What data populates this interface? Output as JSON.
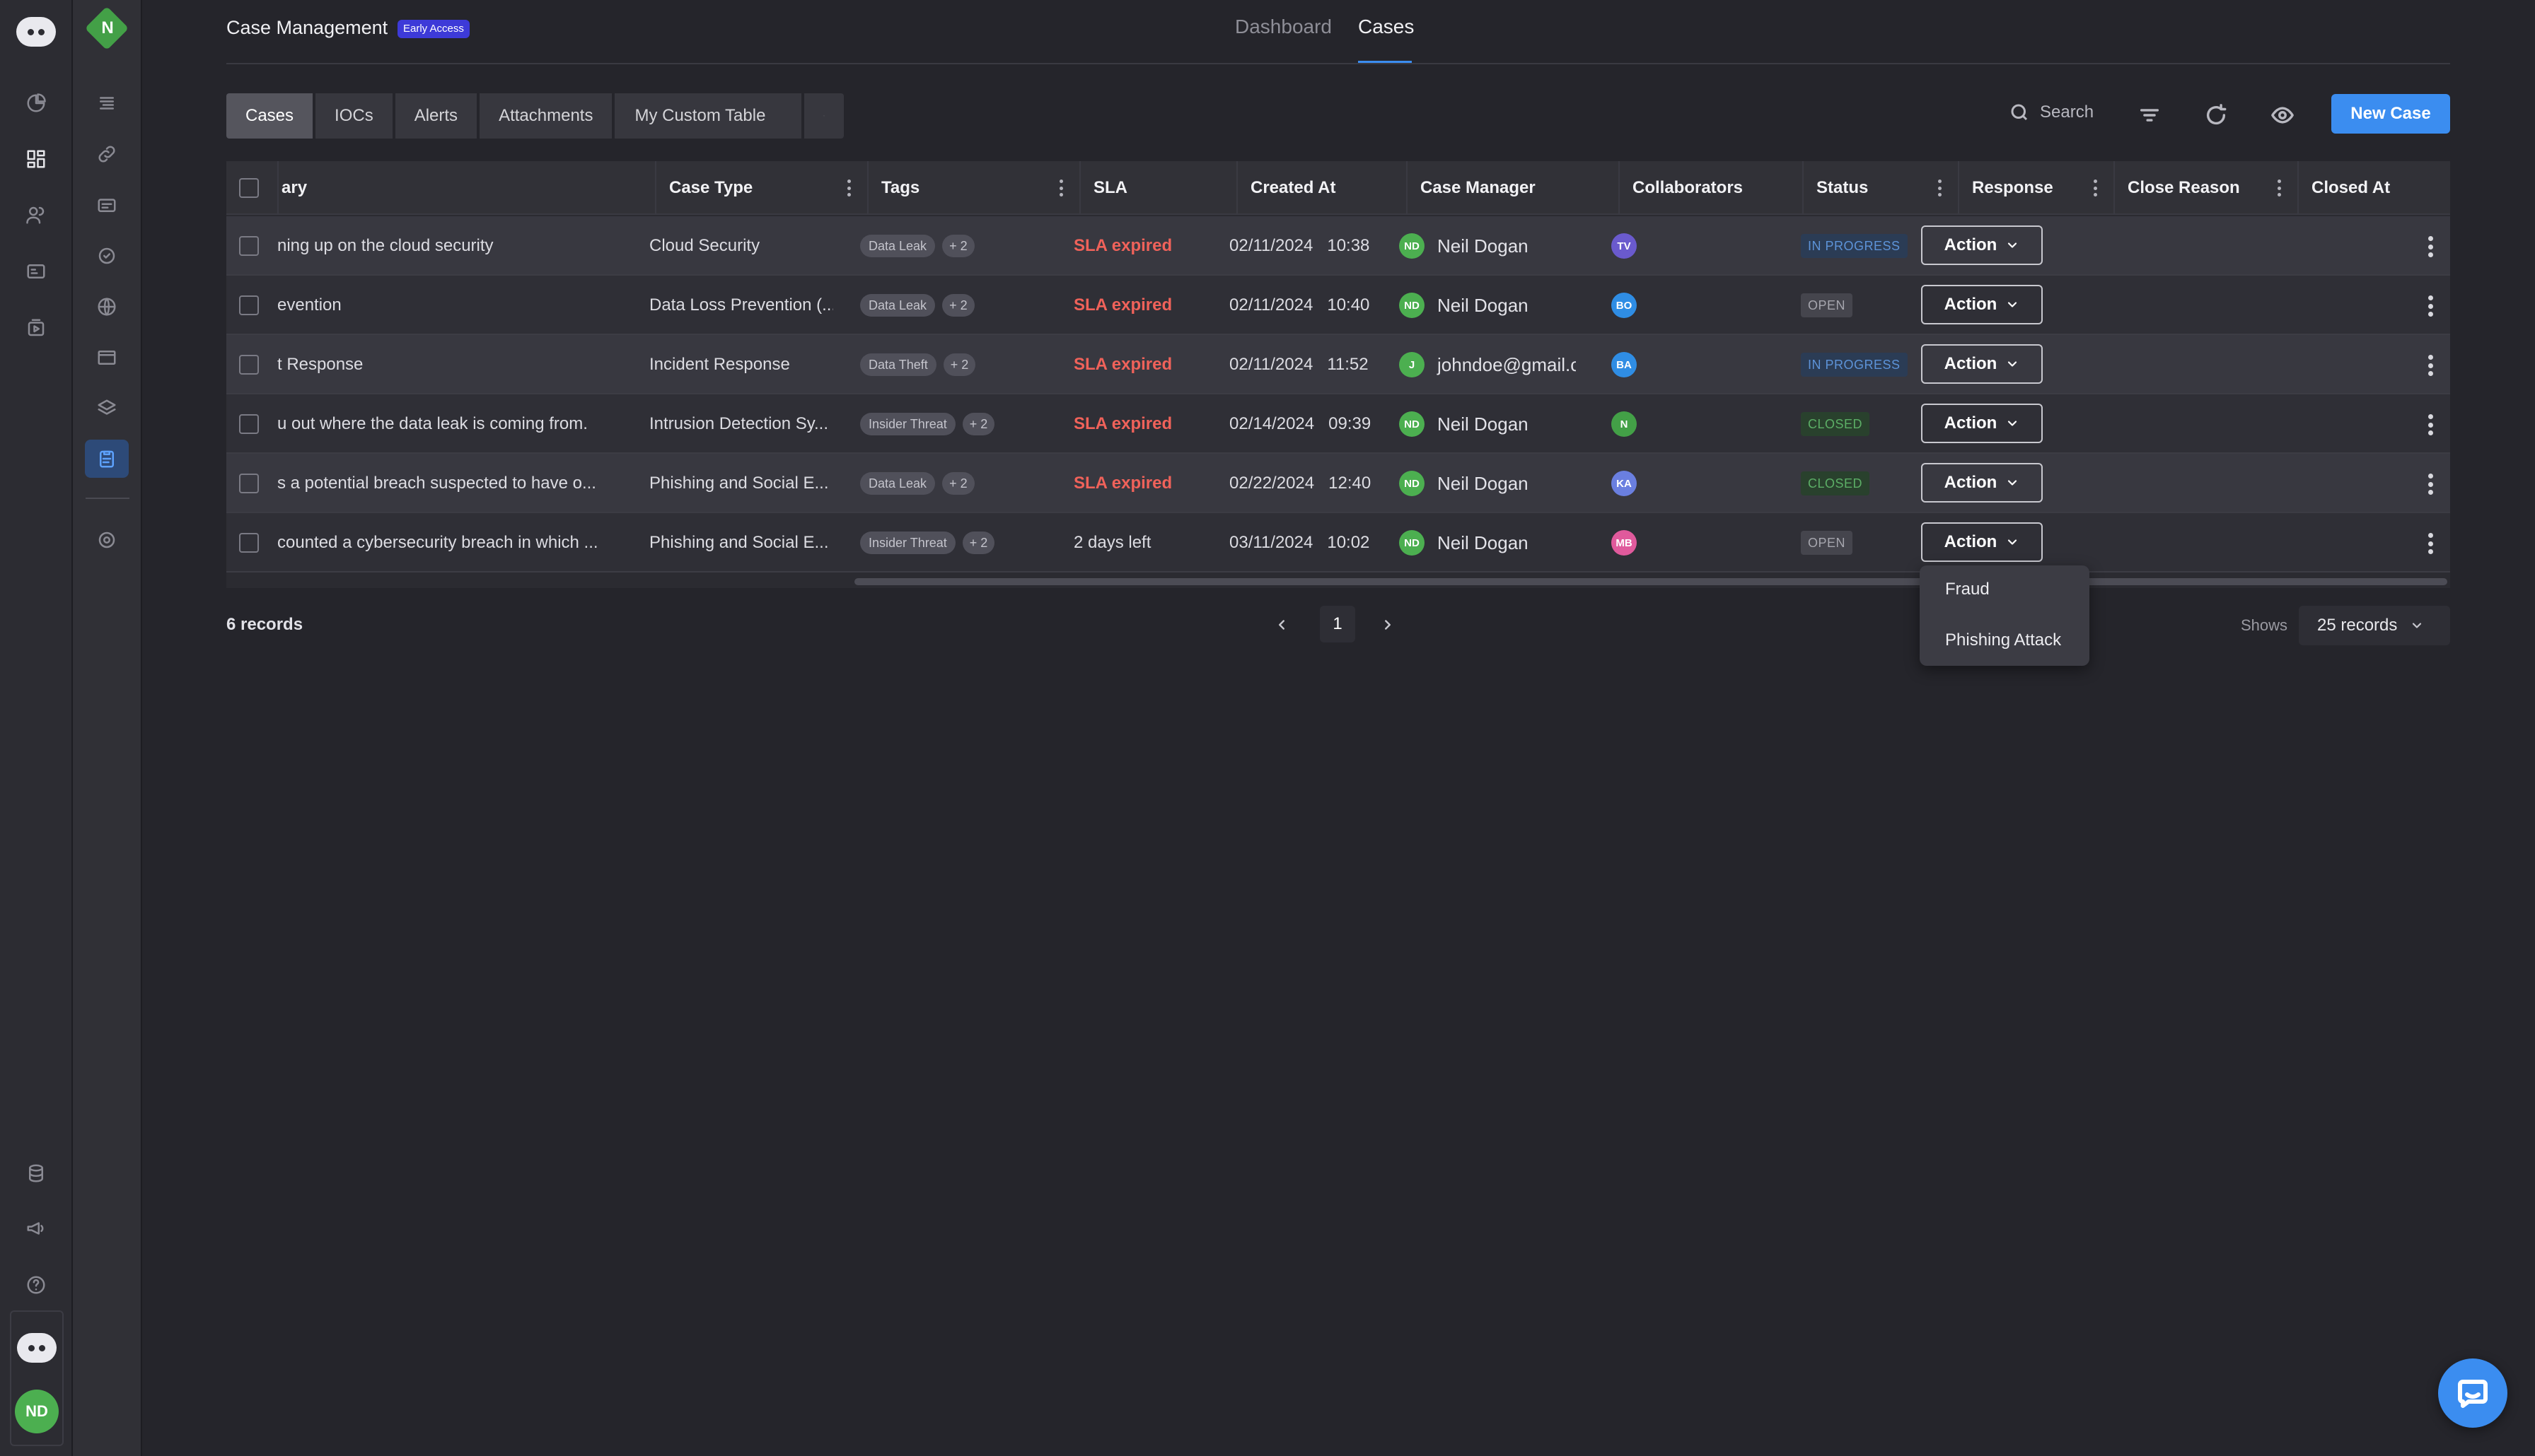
{
  "app": {
    "title": "Case Management",
    "badge": "Early Access",
    "workspace_letter": "N"
  },
  "top_tabs": [
    {
      "label": "Dashboard",
      "active": false
    },
    {
      "label": "Cases",
      "active": true
    }
  ],
  "table_tabs": [
    {
      "label": "Cases",
      "active": true
    },
    {
      "label": "IOCs",
      "active": false
    },
    {
      "label": "Alerts",
      "active": false
    },
    {
      "label": "Attachments",
      "active": false
    },
    {
      "label": "My Custom Table",
      "active": false
    }
  ],
  "toolbar": {
    "search_label": "Search",
    "new_case_label": "New Case"
  },
  "columns": {
    "summary": "ary",
    "case_type": "Case Type",
    "tags": "Tags",
    "sla": "SLA",
    "created_at": "Created At",
    "case_manager": "Case Manager",
    "collaborators": "Collaborators",
    "status": "Status",
    "response": "Response",
    "close_reason": "Close Reason",
    "closed_at": "Closed At"
  },
  "rows": [
    {
      "summary": "ning up on the cloud security",
      "case_type": "Cloud Security",
      "tag": "Data Leak",
      "tag_more": "+ 2",
      "sla": "SLA expired",
      "sla_expired": true,
      "date": "02/11/2024",
      "time": "10:38",
      "manager_initials": "ND",
      "manager": "Neil Dogan",
      "collab_initials": "TV",
      "collab_color": "#6a5acd",
      "status": "IN PROGRESS",
      "status_kind": "progress",
      "action": "Action"
    },
    {
      "summary": "evention",
      "case_type": "Data Loss Prevention (...",
      "tag": "Data Leak",
      "tag_more": "+ 2",
      "sla": "SLA expired",
      "sla_expired": true,
      "date": "02/11/2024",
      "time": "10:40",
      "manager_initials": "ND",
      "manager": "Neil Dogan",
      "collab_initials": "BO",
      "collab_color": "#2f8de4",
      "status": "OPEN",
      "status_kind": "open",
      "action": "Action"
    },
    {
      "summary": "t Response",
      "case_type": "Incident Response",
      "tag": "Data Theft",
      "tag_more": "+ 2",
      "sla": "SLA expired",
      "sla_expired": true,
      "date": "02/11/2024",
      "time": "11:52",
      "manager_initials": "J",
      "manager": "johndoe@gmail.com",
      "collab_initials": "BA",
      "collab_color": "#2f8de4",
      "status": "IN PROGRESS",
      "status_kind": "progress",
      "action": "Action"
    },
    {
      "summary": "u out where the data leak is coming from.",
      "case_type": "Intrusion Detection Sy...",
      "tag": "Insider Threat",
      "tag_more": "+ 2",
      "sla": "SLA expired",
      "sla_expired": true,
      "date": "02/14/2024",
      "time": "09:39",
      "manager_initials": "ND",
      "manager": "Neil Dogan",
      "collab_initials": "N",
      "collab_color": "#43a047",
      "status": "CLOSED",
      "status_kind": "closed",
      "action": "Action"
    },
    {
      "summary": "s a potential breach suspected to have o...",
      "case_type": "Phishing and Social E...",
      "tag": "Data Leak",
      "tag_more": "+ 2",
      "sla": "SLA expired",
      "sla_expired": true,
      "date": "02/22/2024",
      "time": "12:40",
      "manager_initials": "ND",
      "manager": "Neil Dogan",
      "collab_initials": "KA",
      "collab_color": "#6a7fe0",
      "status": "CLOSED",
      "status_kind": "closed",
      "action": "Action"
    },
    {
      "summary": "counted a cybersecurity breach in which ...",
      "case_type": "Phishing and Social E...",
      "tag": "Insider Threat",
      "tag_more": "+ 2",
      "sla": "2 days left",
      "sla_expired": false,
      "date": "03/11/2024",
      "time": "10:02",
      "manager_initials": "ND",
      "manager": "Neil Dogan",
      "collab_initials": "MB",
      "collab_color": "#e05a9c",
      "status": "OPEN",
      "status_kind": "open",
      "action": "Action"
    }
  ],
  "response_dropdown": {
    "items": [
      "Fraud",
      "Phishing Attack"
    ]
  },
  "footer": {
    "records": "6 records",
    "page": "1",
    "shows_label": "Shows",
    "per_page": "25 records"
  },
  "user": {
    "initials": "ND"
  },
  "colors": {
    "accent": "#3b8df0",
    "sla_expired": "#f0625a",
    "avatar_green": "#4caf50"
  },
  "icons": {
    "rail1": [
      "pie-chart-icon",
      "dashboard-grid-icon",
      "users-icon",
      "id-card-icon",
      "media-icon"
    ],
    "rail2": [
      "list-icon",
      "link-icon",
      "card-icon",
      "settings-badge-icon",
      "globe-icon",
      "window-icon",
      "layers-icon",
      "clipboard-icon",
      "target-icon"
    ]
  }
}
